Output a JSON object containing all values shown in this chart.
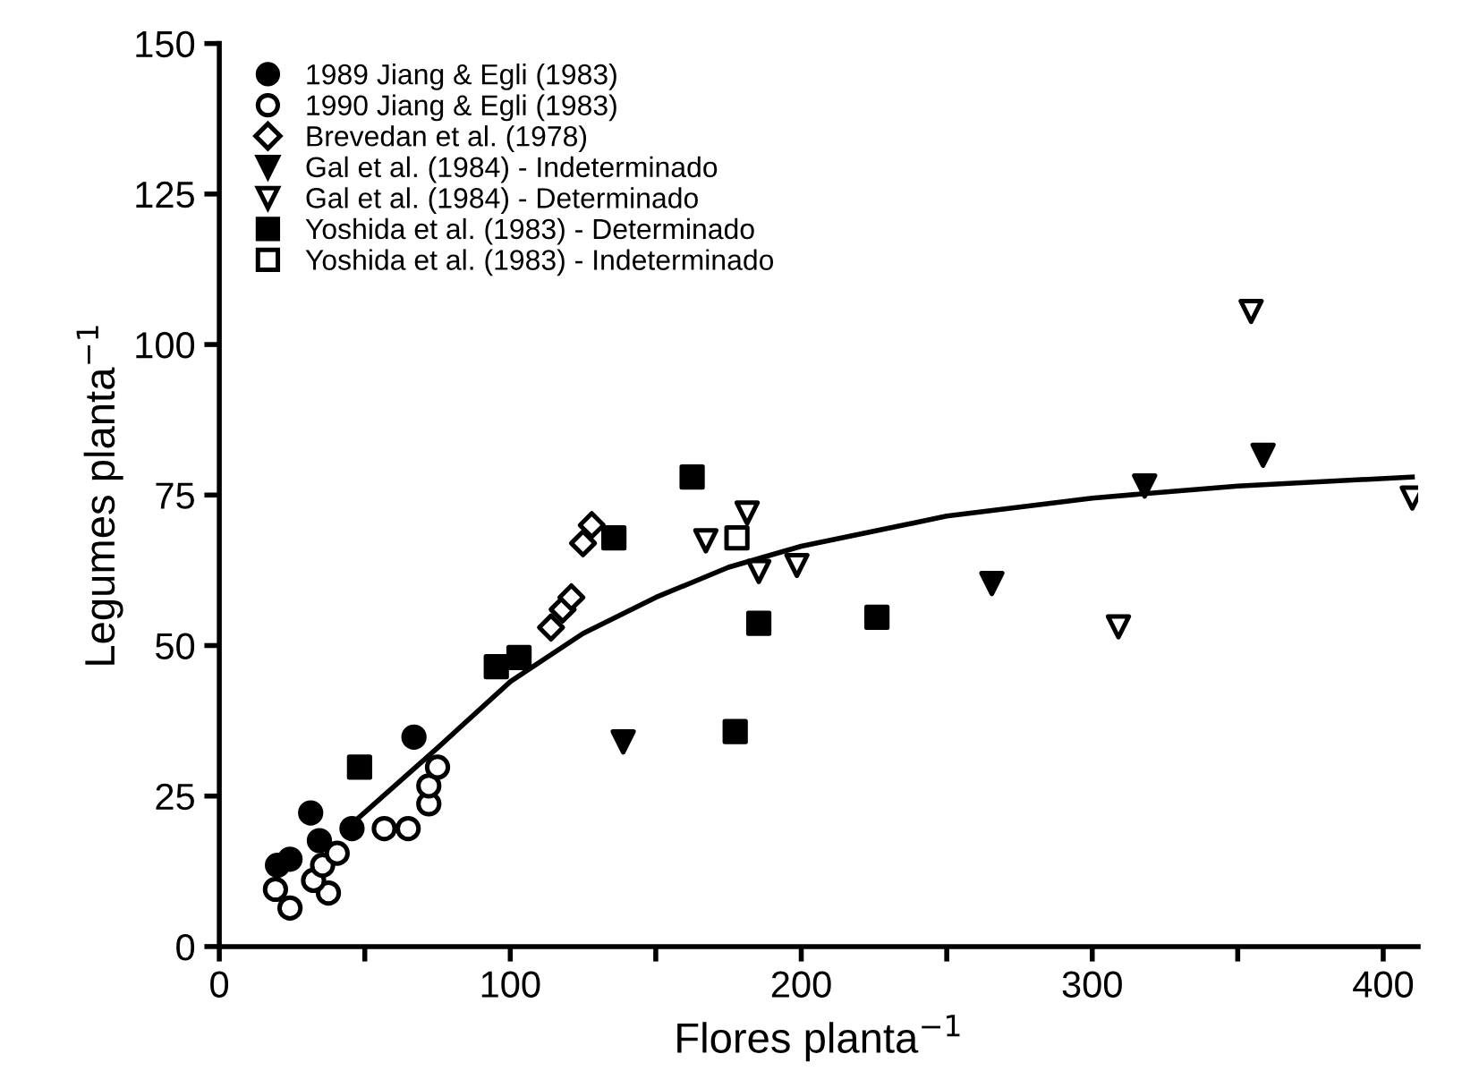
{
  "chart_data": {
    "type": "scatter",
    "xlabel": "Flores planta$^{−1}$",
    "ylabel": "Legumes planta$^{−1}$",
    "xlim": [
      0,
      412
    ],
    "xticks": [
      0,
      {
        "value": 50,
        "label": null
      },
      100,
      {
        "value": 150,
        "label": null
      },
      200,
      {
        "value": 250,
        "label": null
      },
      300,
      {
        "value": 350,
        "label": null
      },
      400
    ],
    "ylim": [
      0,
      150
    ],
    "yticks": [
      0,
      25,
      50,
      75,
      100,
      125,
      150
    ],
    "grid": false,
    "legend": "top left",
    "series": [
      {
        "name": "1989 Jiang & Egli (1983)",
        "color": "#000000",
        "marker": "circle",
        "x": [
          20,
          24.3,
          31.4,
          34.4,
          45.6,
          66.9
        ],
        "values": [
          13.5,
          14.5,
          22.2,
          17.6,
          19.6,
          34.8
        ]
      },
      {
        "name": "1990 Jiang & Egli (1983)",
        "color": "#000000",
        "marker": "circle_open",
        "x": [
          19.3,
          24.3,
          37.5,
          32.4,
          35.5,
          40.5,
          56.7,
          64.9,
          72,
          72,
          75
        ],
        "values": [
          9.5,
          6.4,
          8.9,
          11,
          13.5,
          15.5,
          19.6,
          19.6,
          23.7,
          26.7,
          29.8
        ]
      },
      {
        "name": "Brevedan et al. (1978)",
        "color": "#000000",
        "marker": "diamond_open",
        "x": [
          114,
          118,
          121,
          125,
          128
        ],
        "values": [
          53,
          56,
          58,
          67,
          70
        ]
      },
      {
        "name": "Gal et al. (1984) - Indeterminado",
        "color": "#000000",
        "marker": "triangle_down",
        "x": [
          138.8,
          265.5,
          318,
          358.7
        ],
        "values": [
          34,
          60.3,
          76.5,
          81.6
        ]
      },
      {
        "name": "Gal et al. (1984) - Determinado",
        "color": "#000000",
        "marker": "triangle_down_open",
        "x": [
          167.2,
          181.4,
          185.4,
          198.5,
          309,
          354.6,
          410
        ],
        "values": [
          67.4,
          72,
          62.3,
          63.3,
          53.1,
          105.5,
          74.5
        ]
      },
      {
        "name": "Yoshida et al. (1983) - Determinado",
        "color": "#000000",
        "marker": "square",
        "x": [
          48.2,
          95.2,
          103,
          135.6,
          162.5,
          185.4,
          226,
          177.3
        ],
        "values": [
          29.8,
          46.5,
          48,
          67.9,
          78,
          53.7,
          54.7,
          35.7
        ]
      },
      {
        "name": "Yoshida et al. (1983) - Indeterminado",
        "color": "#000000",
        "marker": "square_open",
        "x": [
          177.9
        ],
        "values": [
          67.9
        ]
      },
      {
        "type": "line",
        "color": "#000000",
        "marker": "none",
        "line_style": "solid",
        "x": [
          47,
          75,
          100,
          125,
          150,
          175,
          200,
          250,
          300,
          350,
          410
        ],
        "values": [
          21,
          33,
          44,
          52,
          58,
          63,
          66.5,
          71.5,
          74.5,
          76.5,
          78
        ]
      }
    ]
  }
}
